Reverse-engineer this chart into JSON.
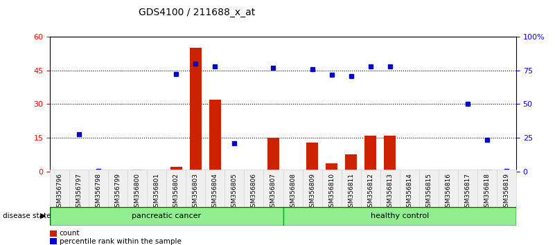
{
  "title": "GDS4100 / 211688_x_at",
  "samples": [
    "GSM356796",
    "GSM356797",
    "GSM356798",
    "GSM356799",
    "GSM356800",
    "GSM356801",
    "GSM356802",
    "GSM356803",
    "GSM356804",
    "GSM356805",
    "GSM356806",
    "GSM356807",
    "GSM356808",
    "GSM356809",
    "GSM356810",
    "GSM356811",
    "GSM356812",
    "GSM356813",
    "GSM356814",
    "GSM356815",
    "GSM356816",
    "GSM356817",
    "GSM356818",
    "GSM356819"
  ],
  "counts": [
    0.3,
    0.7,
    0.2,
    0.5,
    0.8,
    0.3,
    2.0,
    55.0,
    32.0,
    0.5,
    0.3,
    15.0,
    0.5,
    13.0,
    3.5,
    7.5,
    16.0,
    16.0,
    0.3,
    0.3,
    0.2,
    0.3,
    1.0,
    0.3
  ],
  "percentile": [
    null,
    27.5,
    0.5,
    null,
    null,
    null,
    72.5,
    80.0,
    78.0,
    21.0,
    null,
    77.0,
    null,
    76.0,
    72.0,
    71.0,
    78.0,
    78.0,
    null,
    null,
    null,
    50.0,
    23.5,
    0.5
  ],
  "group_labels": [
    "pancreatic cancer",
    "healthy control"
  ],
  "group_ranges": [
    [
      0,
      12
    ],
    [
      12,
      24
    ]
  ],
  "group_colors": [
    "#90EE90",
    "#00CC00"
  ],
  "bar_color": "#CC2200",
  "dot_color": "#0000CC",
  "ylim_left": [
    0,
    60
  ],
  "ylim_right": [
    0,
    100
  ],
  "yticks_left": [
    0,
    15,
    30,
    45,
    60
  ],
  "yticks_right": [
    0,
    25,
    50,
    75,
    100
  ],
  "ytick_labels_right": [
    "0",
    "25",
    "50",
    "75",
    "100%"
  ],
  "bg_color": "#f0f0f0",
  "plot_bg": "#ffffff"
}
